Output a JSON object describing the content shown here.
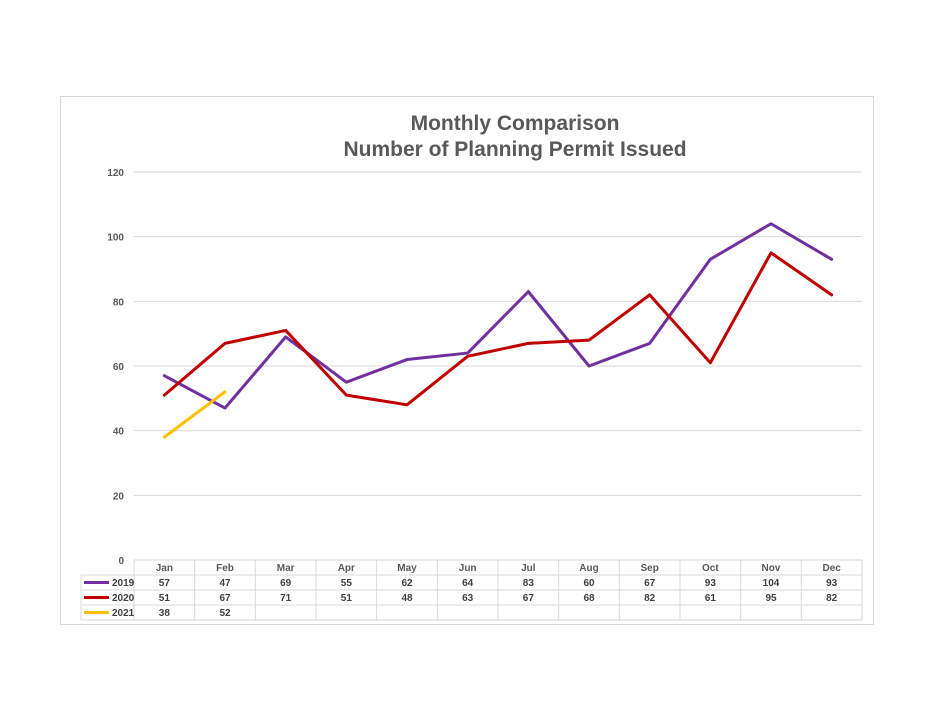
{
  "chart_data": {
    "type": "line",
    "title": "Monthly Comparison",
    "subtitle": "Number of Planning Permit Issued",
    "categories": [
      "Jan",
      "Feb",
      "Mar",
      "Apr",
      "May",
      "Jun",
      "Jul",
      "Aug",
      "Sep",
      "Oct",
      "Nov",
      "Dec"
    ],
    "ylim": [
      0,
      120
    ],
    "yticks": [
      0,
      20,
      40,
      60,
      80,
      100,
      120
    ],
    "grid": true,
    "legend": "data-table",
    "series": [
      {
        "name": "2019",
        "color": "#7030a0",
        "values": [
          57,
          47,
          69,
          55,
          62,
          64,
          83,
          60,
          67,
          93,
          104,
          93
        ]
      },
      {
        "name": "2020",
        "color": "#c00000",
        "values": [
          51,
          67,
          71,
          51,
          48,
          63,
          67,
          68,
          82,
          61,
          95,
          82
        ]
      },
      {
        "name": "2021",
        "color": "#ffc000",
        "values": [
          38,
          52,
          null,
          null,
          null,
          null,
          null,
          null,
          null,
          null,
          null,
          null
        ]
      }
    ]
  }
}
